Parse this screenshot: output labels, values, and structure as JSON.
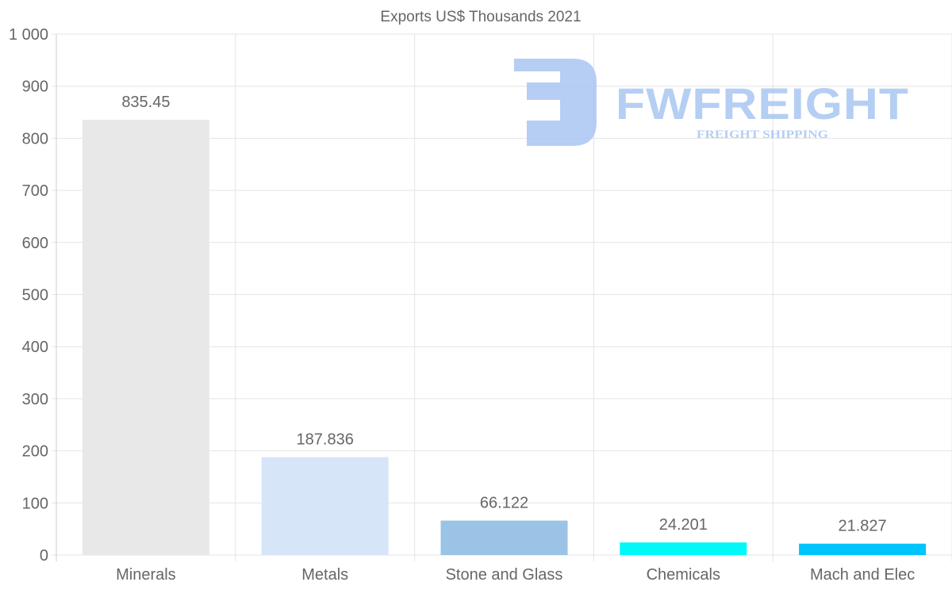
{
  "chart_data": {
    "type": "bar",
    "title": "Exports US$ Thousands 2021",
    "categories": [
      "Minerals",
      "Metals",
      "Stone and Glass",
      "Chemicals",
      "Mach and Elec"
    ],
    "values": [
      835.45,
      187.836,
      66.122,
      24.201,
      21.827
    ],
    "value_labels": [
      "835.45",
      "187.836",
      "66.122",
      "24.201",
      "21.827"
    ],
    "colors": [
      "#e8e8e8",
      "#d6e6f8",
      "#9ac3e6",
      "#00f8f8",
      "#00c5fc"
    ],
    "ylim": [
      0,
      1000
    ],
    "yticks": [
      0,
      100,
      200,
      300,
      400,
      500,
      600,
      700,
      800,
      900,
      1000
    ],
    "ytick_labels": [
      "0",
      "100",
      "200",
      "300",
      "400",
      "500",
      "600",
      "700",
      "800",
      "900",
      "1 000"
    ],
    "xlabel": "",
    "ylabel": "",
    "grid": true,
    "legend": "none"
  },
  "watermark": {
    "brand": "FWFREIGHT",
    "tagline": "FREIGHT SHIPPING",
    "color": "#a9c6f2"
  }
}
